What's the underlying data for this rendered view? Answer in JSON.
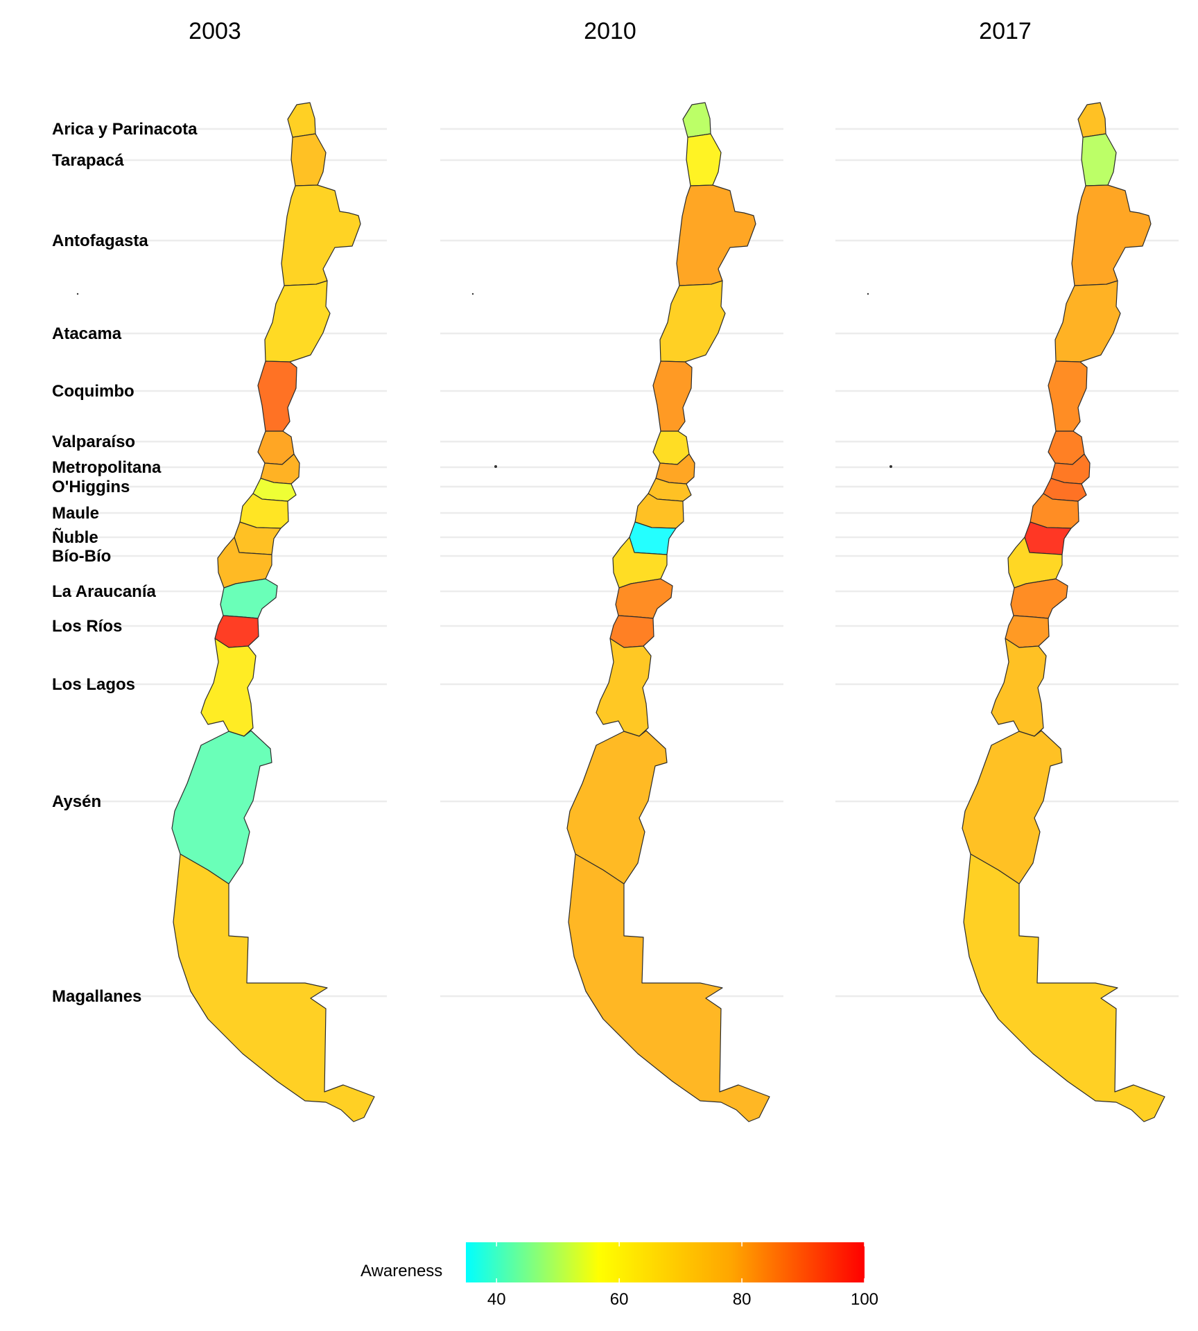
{
  "chart_data": {
    "type": "choropleth",
    "panels": [
      "2003",
      "2010",
      "2017"
    ],
    "regions": [
      "Arica y Parinacota",
      "Tarapacá",
      "Antofagasta",
      "Atacama",
      "Coquimbo",
      "Valparaíso",
      "Metropolitana",
      "O'Higgins",
      "Maule",
      "Ñuble",
      "Bío-Bío",
      "La Araucanía",
      "Los Ríos",
      "Los Lagos",
      "Aysén",
      "Magallanes"
    ],
    "values": {
      "2003": [
        70,
        74,
        69,
        67,
        88,
        80,
        78,
        55,
        64,
        74,
        76,
        42,
        96,
        62,
        42,
        70
      ],
      "2010": [
        50,
        60,
        80,
        70,
        82,
        66,
        80,
        74,
        74,
        35,
        66,
        84,
        86,
        72,
        76,
        77
      ],
      "2017": [
        74,
        50,
        80,
        78,
        84,
        86,
        87,
        88,
        84,
        97,
        68,
        84,
        82,
        74,
        74,
        70
      ]
    },
    "legend": {
      "title": "Awareness",
      "min": 35,
      "max": 100,
      "ticks": [
        "40",
        "60",
        "80",
        "100"
      ],
      "colors": [
        "#00ffff",
        "#ffff00",
        "#ffa500",
        "#ff0000"
      ]
    }
  }
}
